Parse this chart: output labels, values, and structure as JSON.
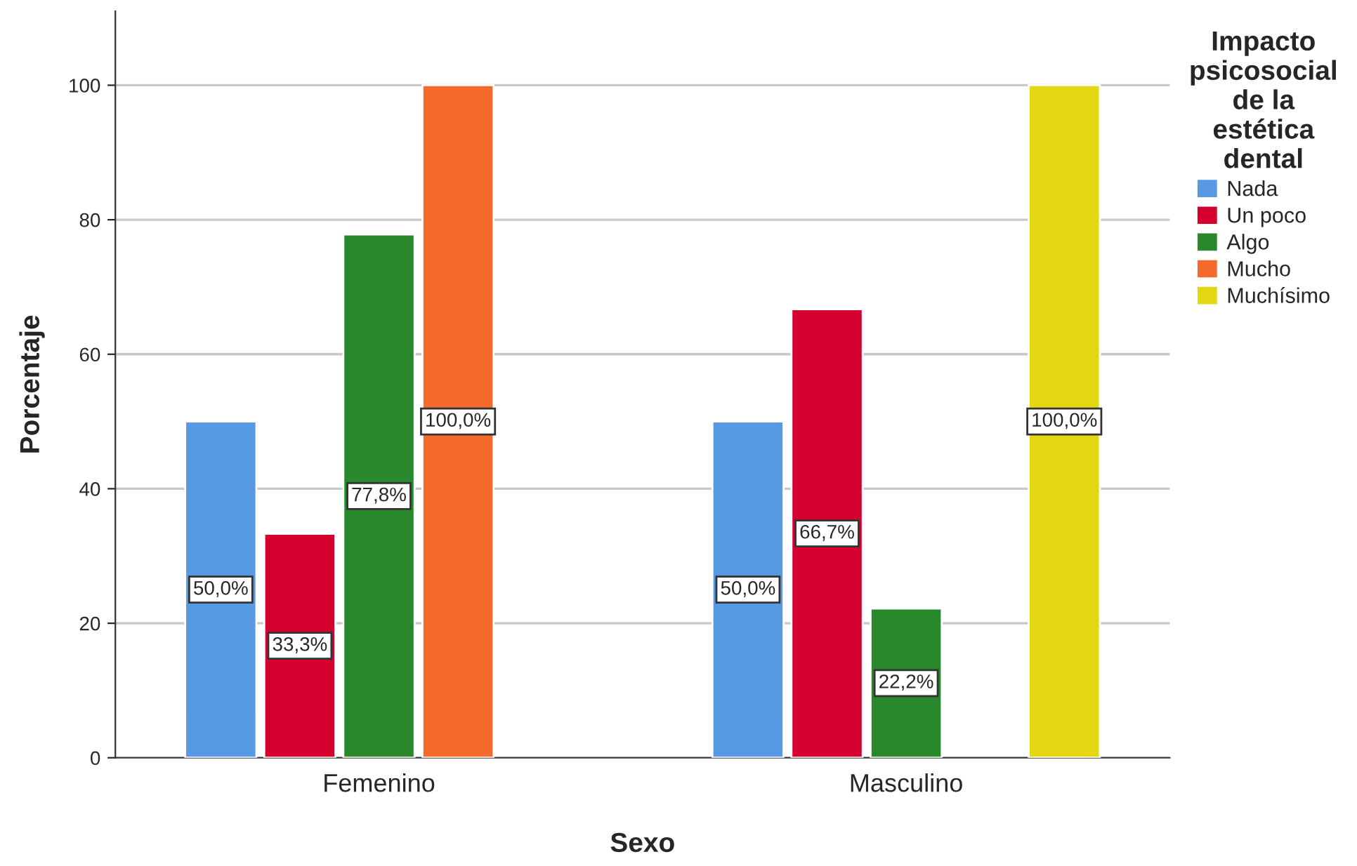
{
  "chart_data": {
    "type": "bar",
    "xlabel": "Sexo",
    "ylabel": "Porcentaje",
    "legend_title": "Impacto\npsicosocial\nde la\nestética\ndental",
    "categories": [
      "Femenino",
      "Masculino"
    ],
    "series": [
      {
        "name": "Nada",
        "color": "#5799e2",
        "values": [
          50.0,
          50.0
        ],
        "value_labels": [
          "50,0%",
          "50,0%"
        ]
      },
      {
        "name": "Un poco",
        "color": "#d6002f",
        "values": [
          33.3,
          66.7
        ],
        "value_labels": [
          "33,3%",
          "66,7%"
        ]
      },
      {
        "name": "Algo",
        "color": "#2a882c",
        "values": [
          77.8,
          22.2
        ],
        "value_labels": [
          "77,8%",
          "22,2%"
        ]
      },
      {
        "name": "Mucho",
        "color": "#f46a2c",
        "values": [
          100.0,
          null
        ],
        "value_labels": [
          "100,0%",
          null
        ]
      },
      {
        "name": "Muchísimo",
        "color": "#e3d712",
        "values": [
          null,
          100.0
        ],
        "value_labels": [
          null,
          "100,0%"
        ]
      }
    ],
    "ylim": [
      0,
      111
    ],
    "yticks": [
      0,
      20,
      40,
      60,
      80,
      100
    ],
    "grid": "y",
    "legend": "top right"
  }
}
